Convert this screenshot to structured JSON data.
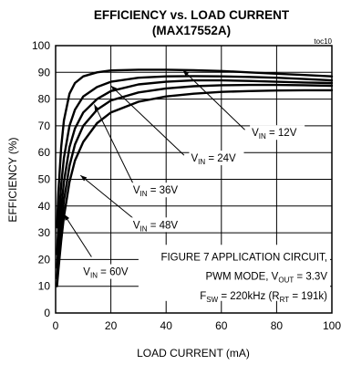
{
  "chart_data": {
    "type": "line",
    "title": "EFFICIENCY vs. LOAD CURRENT",
    "subtitle": "(MAX17552A)",
    "tag": "toc10",
    "xlabel": "LOAD CURRENT (mA)",
    "ylabel": "EFFICIENCY (%)",
    "xlim": [
      0,
      100
    ],
    "ylim": [
      0,
      100
    ],
    "xticks": [
      0,
      20,
      40,
      60,
      80,
      100
    ],
    "yticks": [
      0,
      10,
      20,
      30,
      40,
      50,
      60,
      70,
      80,
      90,
      100
    ],
    "grid": true,
    "series": [
      {
        "label": {
          "pre": "V",
          "sub": "IN",
          "post": " = 12V"
        },
        "x": [
          0.5,
          1,
          2,
          3,
          5,
          7,
          10,
          15,
          20,
          30,
          40,
          50,
          60,
          70,
          80,
          90,
          100
        ],
        "y": [
          32,
          45,
          62,
          72,
          82,
          86,
          88.5,
          90,
          90.7,
          91,
          91,
          90.8,
          90.5,
          90,
          89.5,
          89,
          88.5
        ]
      },
      {
        "label": {
          "pre": "V",
          "sub": "IN",
          "post": " = 24V"
        },
        "x": [
          0.5,
          1,
          2,
          3,
          5,
          7,
          10,
          15,
          20,
          30,
          40,
          50,
          60,
          70,
          80,
          90,
          100
        ],
        "y": [
          22,
          33,
          48,
          58,
          70,
          76,
          81,
          84.5,
          86.5,
          88,
          88.5,
          88.6,
          88.5,
          88.3,
          88,
          87.5,
          87
        ]
      },
      {
        "label": {
          "pre": "V",
          "sub": "IN",
          "post": " = 36V"
        },
        "x": [
          0.5,
          1,
          2,
          3,
          5,
          7,
          10,
          15,
          20,
          30,
          40,
          50,
          60,
          70,
          80,
          90,
          100
        ],
        "y": [
          17,
          25,
          39,
          49,
          62,
          69,
          75,
          80,
          83,
          85.5,
          86.5,
          87,
          87,
          86.8,
          86.5,
          86.2,
          86
        ]
      },
      {
        "label": {
          "pre": "V",
          "sub": "IN",
          "post": " = 48V"
        },
        "x": [
          0.5,
          1,
          2,
          3,
          5,
          7,
          10,
          15,
          20,
          30,
          40,
          50,
          60,
          70,
          80,
          90,
          100
        ],
        "y": [
          13,
          20,
          32,
          42,
          55,
          63,
          70,
          76,
          79.5,
          82.5,
          84,
          84.8,
          85.2,
          85.3,
          85.3,
          85.2,
          85
        ]
      },
      {
        "label": {
          "pre": "V",
          "sub": "IN",
          "post": " = 60V"
        },
        "x": [
          0.5,
          1,
          2,
          3,
          5,
          7,
          10,
          15,
          20,
          30,
          40,
          50,
          60,
          70,
          80,
          90,
          100
        ],
        "y": [
          10,
          16,
          27,
          36,
          49,
          57,
          64,
          71,
          75,
          79,
          81,
          82,
          82.7,
          83,
          83.2,
          83.3,
          83.3
        ]
      }
    ],
    "annotation": {
      "line1": "FIGURE 7 APPLICATION CIRCUIT,",
      "line2_pre": "PWM MODE, V",
      "line2_sub": "OUT",
      "line2_post": " = 3.3V",
      "line3_pre": "F",
      "line3_sub": "SW",
      "line3_mid": " = 220kHz (R",
      "line3_sub2": "RT",
      "line3_post": " = 191k)"
    }
  }
}
